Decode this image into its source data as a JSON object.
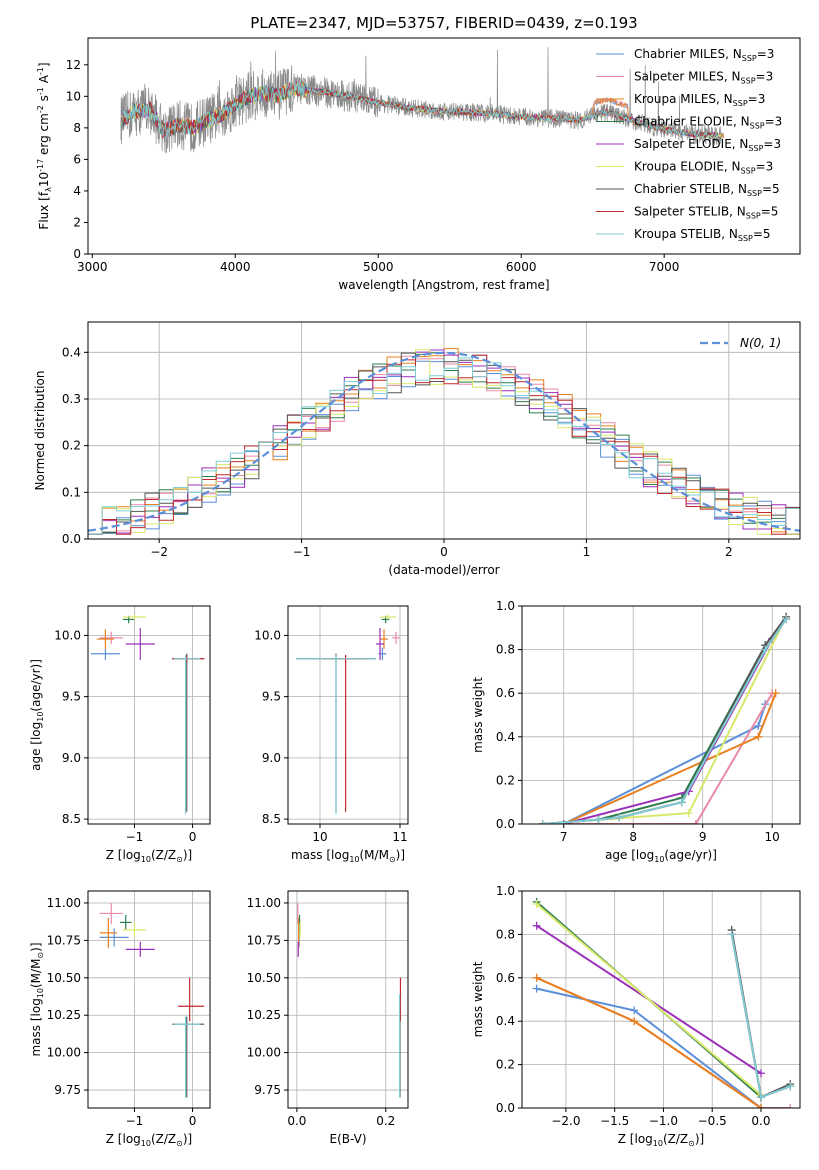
{
  "figure": {
    "title": "PLATE=2347, MJD=53757, FIBERID=0439, z=0.193"
  },
  "colors": {
    "Chabrier MILES": "#5b8fd9",
    "Salpeter MILES": "#e88aa8",
    "Kroupa MILES": "#e8801f",
    "Chabrier ELODIE": "#2e7d4f",
    "Salpeter ELODIE": "#9a2fb8",
    "Kroupa ELODIE": "#d9e86a",
    "Chabrier STELIB": "#555555",
    "Salpeter STELIB": "#c0282d",
    "Kroupa STELIB": "#7ccfd6",
    "data": "#8a8a8a",
    "normal": "#5b8fd9"
  },
  "chart_data": [
    {
      "id": "spectrum",
      "type": "line",
      "title": "PLATE=2347, MJD=53757, FIBERID=0439, z=0.193",
      "xlabel": "wavelength [Angstrom, rest frame]",
      "ylabel": "Flux [f$_\\lambda$10$^{-17}$ erg cm$^{-2}$ s$^{-1}$ A$^{-1}$]",
      "xlim": [
        2970,
        7950
      ],
      "ylim": [
        0,
        13.7
      ],
      "xticks": [
        3000,
        4000,
        5000,
        6000,
        7000
      ],
      "yticks": [
        0,
        2,
        4,
        6,
        8,
        10,
        12
      ],
      "grid": false,
      "legend": "top-right",
      "data_range": [
        3200,
        7400
      ],
      "continuum": {
        "x": [
          3200,
          3300,
          3400,
          3500,
          3600,
          3700,
          3800,
          3900,
          4000,
          4100,
          4200,
          4300,
          4400,
          4500,
          4600,
          4800,
          5000,
          5200,
          5400,
          5600,
          5800,
          6000,
          6200,
          6400,
          6600,
          6800,
          7000,
          7200,
          7400
        ],
        "y": [
          8.5,
          9.0,
          9.2,
          7.8,
          8.2,
          8.0,
          8.5,
          8.8,
          9.5,
          10.0,
          10.2,
          10.0,
          10.5,
          10.4,
          10.3,
          10.0,
          9.6,
          9.3,
          9.1,
          9.0,
          8.9,
          8.7,
          8.6,
          8.5,
          9.0,
          8.4,
          7.9,
          7.6,
          7.5
        ]
      },
      "legend_entries": [
        {
          "label": "Chabrier MILES, N$_{SSP}$=3",
          "color_key": "Chabrier MILES"
        },
        {
          "label": "Salpeter MILES, N$_{SSP}$=3",
          "color_key": "Salpeter MILES"
        },
        {
          "label": "Kroupa MILES, N$_{SSP}$=3",
          "color_key": "Kroupa MILES"
        },
        {
          "label": "Chabrier ELODIE, N$_{SSP}$=3",
          "color_key": "Chabrier ELODIE"
        },
        {
          "label": "Salpeter ELODIE, N$_{SSP}$=3",
          "color_key": "Salpeter ELODIE"
        },
        {
          "label": "Kroupa ELODIE, N$_{SSP}$=3",
          "color_key": "Kroupa ELODIE"
        },
        {
          "label": "Chabrier STELIB, N$_{SSP}$=5",
          "color_key": "Chabrier STELIB"
        },
        {
          "label": "Salpeter STELIB, N$_{SSP}$=5",
          "color_key": "Salpeter STELIB"
        },
        {
          "label": "Kroupa STELIB, N$_{SSP}$=5",
          "color_key": "Kroupa STELIB"
        }
      ]
    },
    {
      "id": "residuals",
      "type": "histogram",
      "xlabel": "(data-model)/error",
      "ylabel": "Normed distribution",
      "xlim": [
        -2.5,
        2.5
      ],
      "ylim": [
        0,
        0.465
      ],
      "xticks": [
        -2,
        -1,
        0,
        1,
        2
      ],
      "yticks": [
        0.0,
        0.1,
        0.2,
        0.3,
        0.4
      ],
      "grid": true,
      "legend": "top-right",
      "legend_label": "$\\mathcal{N}(0,1)$",
      "bin_width": 0.1,
      "bin_start": -2.5
    },
    {
      "id": "age_vs_Z",
      "type": "errorbar",
      "xlabel": "Z [log$_{10}$(Z/Z$_\\odot$)]",
      "ylabel": "age  [log$_{10}$(age/yr)]",
      "xlim": [
        -1.8,
        0.3
      ],
      "ylim": [
        8.46,
        10.24
      ],
      "xticks": [
        -1,
        0
      ],
      "yticks": [
        8.5,
        9.0,
        9.5,
        10.0
      ],
      "grid": true,
      "points": [
        {
          "model": "Chabrier MILES",
          "x": -1.5,
          "y": 9.85,
          "xerr": [
            0.25,
            0.25
          ],
          "yerr": [
            0.05,
            0.05
          ]
        },
        {
          "model": "Salpeter MILES",
          "x": -1.4,
          "y": 9.98,
          "xerr": [
            0.2,
            0.2
          ],
          "yerr": [
            0.05,
            0.05
          ]
        },
        {
          "model": "Kroupa MILES",
          "x": -1.5,
          "y": 9.97,
          "xerr": [
            0.15,
            0.15
          ],
          "yerr": [
            0.08,
            0.08
          ]
        },
        {
          "model": "Chabrier ELODIE",
          "x": -1.1,
          "y": 10.13,
          "xerr": [
            0.1,
            0.1
          ],
          "yerr": [
            0.03,
            0.03
          ]
        },
        {
          "model": "Salpeter ELODIE",
          "x": -0.9,
          "y": 9.93,
          "xerr": [
            0.25,
            0.25
          ],
          "yerr": [
            0.13,
            0.13
          ]
        },
        {
          "model": "Kroupa ELODIE",
          "x": -1.0,
          "y": 10.15,
          "xerr": [
            0.2,
            0.2
          ],
          "yerr": [
            0.02,
            0.02
          ]
        },
        {
          "model": "Chabrier STELIB",
          "x": -0.1,
          "y": 9.81,
          "xerr": [
            0.25,
            0.3
          ],
          "yerr": [
            1.25,
            0.04
          ]
        },
        {
          "model": "Salpeter STELIB",
          "x": -0.1,
          "y": 9.81,
          "xerr": [
            0.25,
            0.3
          ],
          "yerr": [
            0.03,
            0.03
          ]
        },
        {
          "model": "Kroupa STELIB",
          "x": -0.12,
          "y": 9.81,
          "xerr": [
            0.2,
            0.25
          ],
          "yerr": [
            1.27,
            0.03
          ]
        }
      ]
    },
    {
      "id": "age_vs_mass",
      "type": "errorbar",
      "xlabel": "mass [log$_{10}$(M/M$_\\odot$)]",
      "ylabel": "",
      "xlim": [
        9.6,
        11.1
      ],
      "ylim": [
        8.46,
        10.24
      ],
      "xticks": [
        10,
        11
      ],
      "yticks": [
        8.5,
        9.0,
        9.5,
        10.0
      ],
      "grid": true,
      "points": [
        {
          "model": "Chabrier MILES",
          "x": 10.78,
          "y": 9.85,
          "xerr": [
            0.05,
            0.05
          ],
          "yerr": [
            0.05,
            0.05
          ]
        },
        {
          "model": "Salpeter MILES",
          "x": 10.95,
          "y": 9.98,
          "xerr": [
            0.05,
            0.05
          ],
          "yerr": [
            0.05,
            0.05
          ]
        },
        {
          "model": "Kroupa MILES",
          "x": 10.8,
          "y": 9.97,
          "xerr": [
            0.05,
            0.05
          ],
          "yerr": [
            0.08,
            0.08
          ]
        },
        {
          "model": "Chabrier ELODIE",
          "x": 10.82,
          "y": 10.13,
          "xerr": [
            0.05,
            0.05
          ],
          "yerr": [
            0.03,
            0.03
          ]
        },
        {
          "model": "Salpeter ELODIE",
          "x": 10.75,
          "y": 9.93,
          "xerr": [
            0.05,
            0.05
          ],
          "yerr": [
            0.13,
            0.13
          ]
        },
        {
          "model": "Kroupa ELODIE",
          "x": 10.85,
          "y": 10.15,
          "xerr": [
            0.1,
            0.1
          ],
          "yerr": [
            0.02,
            0.02
          ]
        },
        {
          "model": "Chabrier STELIB",
          "x": 10.2,
          "y": 9.81,
          "xerr": [
            0.5,
            0.5
          ],
          "yerr": [
            1.25,
            0.04
          ]
        },
        {
          "model": "Salpeter STELIB",
          "x": 10.32,
          "y": 9.81,
          "xerr": [
            0.3,
            0.3
          ],
          "yerr": [
            1.25,
            0.03
          ]
        },
        {
          "model": "Kroupa STELIB",
          "x": 10.2,
          "y": 9.81,
          "xerr": [
            0.5,
            0.5
          ],
          "yerr": [
            1.27,
            0.03
          ]
        }
      ]
    },
    {
      "id": "weight_vs_age",
      "type": "line",
      "xlabel": "age  [log$_{10}$(age/yr)]",
      "ylabel": "mass weight",
      "xlim": [
        6.4,
        10.4
      ],
      "ylim": [
        0,
        1.0
      ],
      "xticks": [
        7,
        8,
        9,
        10
      ],
      "yticks": [
        0.0,
        0.2,
        0.4,
        0.6,
        0.8,
        1.0
      ],
      "grid": true,
      "series": [
        {
          "model": "Chabrier MILES",
          "x": [
            7.0,
            9.8,
            9.9
          ],
          "y": [
            0.0,
            0.45,
            0.55
          ]
        },
        {
          "model": "Salpeter MILES",
          "x": [
            7.0,
            8.9,
            10.0
          ],
          "y": [
            0.0,
            0.0,
            0.6
          ]
        },
        {
          "model": "Kroupa MILES",
          "x": [
            7.0,
            9.8,
            10.05
          ],
          "y": [
            0.0,
            0.4,
            0.6
          ]
        },
        {
          "model": "Chabrier ELODIE",
          "x": [
            7.5,
            8.7,
            9.9
          ],
          "y": [
            0.02,
            0.12,
            0.82
          ]
        },
        {
          "model": "Salpeter ELODIE",
          "x": [
            7.0,
            8.8,
            10.0
          ],
          "y": [
            0.0,
            0.15,
            0.85
          ]
        },
        {
          "model": "Kroupa ELODIE",
          "x": [
            6.7,
            8.8,
            10.2
          ],
          "y": [
            0.0,
            0.05,
            0.95
          ]
        },
        {
          "model": "Chabrier STELIB",
          "x": [
            6.7,
            7.5,
            7.8,
            8.7,
            9.9,
            10.2
          ],
          "y": [
            0.0,
            0.02,
            0.03,
            0.1,
            0.82,
            0.95
          ]
        },
        {
          "model": "Salpeter STELIB",
          "x": [
            6.7,
            7.5,
            7.8,
            8.7,
            9.9,
            10.2
          ],
          "y": [
            0.0,
            0.02,
            0.03,
            0.1,
            0.8,
            0.94
          ]
        },
        {
          "model": "Kroupa STELIB",
          "x": [
            6.7,
            7.5,
            7.8,
            8.7,
            9.9,
            10.2
          ],
          "y": [
            0.0,
            0.02,
            0.03,
            0.1,
            0.8,
            0.94
          ]
        }
      ]
    },
    {
      "id": "mass_vs_Z",
      "type": "errorbar",
      "xlabel": "Z [log$_{10}$(Z/Z$_\\odot$)]",
      "ylabel": "mass [log$_{10}$(M/M$_\\odot$)]",
      "xlim": [
        -1.8,
        0.3
      ],
      "ylim": [
        9.63,
        11.08
      ],
      "xticks": [
        -1,
        0
      ],
      "yticks": [
        9.75,
        10.0,
        10.25,
        10.5,
        10.75,
        11.0
      ],
      "grid": true,
      "points": [
        {
          "model": "Chabrier MILES",
          "x": -1.35,
          "y": 10.77,
          "xerr": [
            0.25,
            0.25
          ],
          "yerr": [
            0.06,
            0.06
          ]
        },
        {
          "model": "Salpeter MILES",
          "x": -1.4,
          "y": 10.93,
          "xerr": [
            0.2,
            0.2
          ],
          "yerr": [
            0.07,
            0.07
          ]
        },
        {
          "model": "Kroupa MILES",
          "x": -1.45,
          "y": 10.8,
          "xerr": [
            0.15,
            0.15
          ],
          "yerr": [
            0.1,
            0.1
          ]
        },
        {
          "model": "Chabrier ELODIE",
          "x": -1.15,
          "y": 10.87,
          "xerr": [
            0.1,
            0.1
          ],
          "yerr": [
            0.05,
            0.05
          ]
        },
        {
          "model": "Salpeter ELODIE",
          "x": -0.9,
          "y": 10.69,
          "xerr": [
            0.25,
            0.25
          ],
          "yerr": [
            0.05,
            0.05
          ]
        },
        {
          "model": "Kroupa ELODIE",
          "x": -1.0,
          "y": 10.82,
          "xerr": [
            0.2,
            0.2
          ],
          "yerr": [
            0.05,
            0.05
          ]
        },
        {
          "model": "Chabrier STELIB",
          "x": -0.1,
          "y": 10.19,
          "xerr": [
            0.25,
            0.3
          ],
          "yerr": [
            0.49,
            0.05
          ]
        },
        {
          "model": "Salpeter STELIB",
          "x": -0.05,
          "y": 10.31,
          "xerr": [
            0.2,
            0.25
          ],
          "yerr": [
            0.1,
            0.19
          ]
        },
        {
          "model": "Kroupa STELIB",
          "x": -0.12,
          "y": 10.19,
          "xerr": [
            0.2,
            0.25
          ],
          "yerr": [
            0.49,
            0.05
          ]
        }
      ]
    },
    {
      "id": "mass_vs_EBV",
      "type": "errorbar",
      "xlabel": "E(B-V)",
      "ylabel": "",
      "xlim": [
        -0.02,
        0.25
      ],
      "ylim": [
        9.63,
        11.08
      ],
      "xticks": [
        0.0,
        0.2
      ],
      "yticks": [
        9.75,
        10.0,
        10.25,
        10.5,
        10.75,
        11.0
      ],
      "grid": true,
      "points": [
        {
          "model": "Chabrier MILES",
          "x": 0.005,
          "y": 10.77,
          "xerr": [
            0.0,
            0.0
          ],
          "yerr": [
            0.06,
            0.06
          ]
        },
        {
          "model": "Salpeter MILES",
          "x": 0.002,
          "y": 10.93,
          "xerr": [
            0.0,
            0.0
          ],
          "yerr": [
            0.07,
            0.07
          ]
        },
        {
          "model": "Kroupa MILES",
          "x": 0.004,
          "y": 10.8,
          "xerr": [
            0.0,
            0.0
          ],
          "yerr": [
            0.1,
            0.1
          ]
        },
        {
          "model": "Chabrier ELODIE",
          "x": 0.006,
          "y": 10.87,
          "xerr": [
            0.0,
            0.0
          ],
          "yerr": [
            0.05,
            0.05
          ]
        },
        {
          "model": "Salpeter ELODIE",
          "x": 0.003,
          "y": 10.69,
          "xerr": [
            0.0,
            0.0
          ],
          "yerr": [
            0.05,
            0.05
          ]
        },
        {
          "model": "Kroupa ELODIE",
          "x": 0.007,
          "y": 10.82,
          "xerr": [
            0.0,
            0.0
          ],
          "yerr": [
            0.05,
            0.05
          ]
        },
        {
          "model": "Chabrier STELIB",
          "x": 0.232,
          "y": 10.19,
          "xerr": [
            0.0,
            0.0
          ],
          "yerr": [
            0.49,
            0.05
          ]
        },
        {
          "model": "Salpeter STELIB",
          "x": 0.233,
          "y": 10.31,
          "xerr": [
            0.0,
            0.0
          ],
          "yerr": [
            0.1,
            0.19
          ]
        },
        {
          "model": "Kroupa STELIB",
          "x": 0.231,
          "y": 10.19,
          "xerr": [
            0.0,
            0.0
          ],
          "yerr": [
            0.49,
            0.2
          ]
        }
      ]
    },
    {
      "id": "weight_vs_Z",
      "type": "line",
      "xlabel": "Z [log$_{10}$(Z/Z$_\\odot$)]",
      "ylabel": "mass weight",
      "xlim": [
        -2.45,
        0.4
      ],
      "ylim": [
        0,
        1.0
      ],
      "xticks": [
        -2.0,
        -1.5,
        -1.0,
        -0.5,
        0.0
      ],
      "yticks": [
        0.0,
        0.2,
        0.4,
        0.6,
        0.8,
        1.0
      ],
      "grid": true,
      "series": [
        {
          "model": "Chabrier MILES",
          "x": [
            -2.3,
            -1.3,
            0.0
          ],
          "y": [
            0.55,
            0.45,
            0.0
          ]
        },
        {
          "model": "Salpeter MILES",
          "x": [
            -2.3,
            -1.3,
            0.0,
            0.3
          ],
          "y": [
            0.6,
            0.4,
            0.0,
            0.0
          ]
        },
        {
          "model": "Kroupa MILES",
          "x": [
            -2.3,
            -1.3,
            0.0
          ],
          "y": [
            0.6,
            0.4,
            0.0
          ]
        },
        {
          "model": "Chabrier ELODIE",
          "x": [
            -2.3,
            0.0
          ],
          "y": [
            0.95,
            0.05
          ]
        },
        {
          "model": "Salpeter ELODIE",
          "x": [
            -2.3,
            0.0
          ],
          "y": [
            0.84,
            0.16
          ]
        },
        {
          "model": "Kroupa ELODIE",
          "x": [
            -2.3,
            0.0
          ],
          "y": [
            0.94,
            0.06
          ]
        },
        {
          "model": "Chabrier STELIB",
          "x": [
            -0.3,
            0.0,
            0.3
          ],
          "y": [
            0.82,
            0.05,
            0.11
          ]
        },
        {
          "model": "Salpeter STELIB",
          "x": [
            -0.3,
            0.0,
            0.3
          ],
          "y": [
            0.8,
            0.05,
            0.1
          ]
        },
        {
          "model": "Kroupa STELIB",
          "x": [
            -0.3,
            0.0,
            0.3
          ],
          "y": [
            0.8,
            0.05,
            0.1
          ]
        }
      ]
    }
  ]
}
